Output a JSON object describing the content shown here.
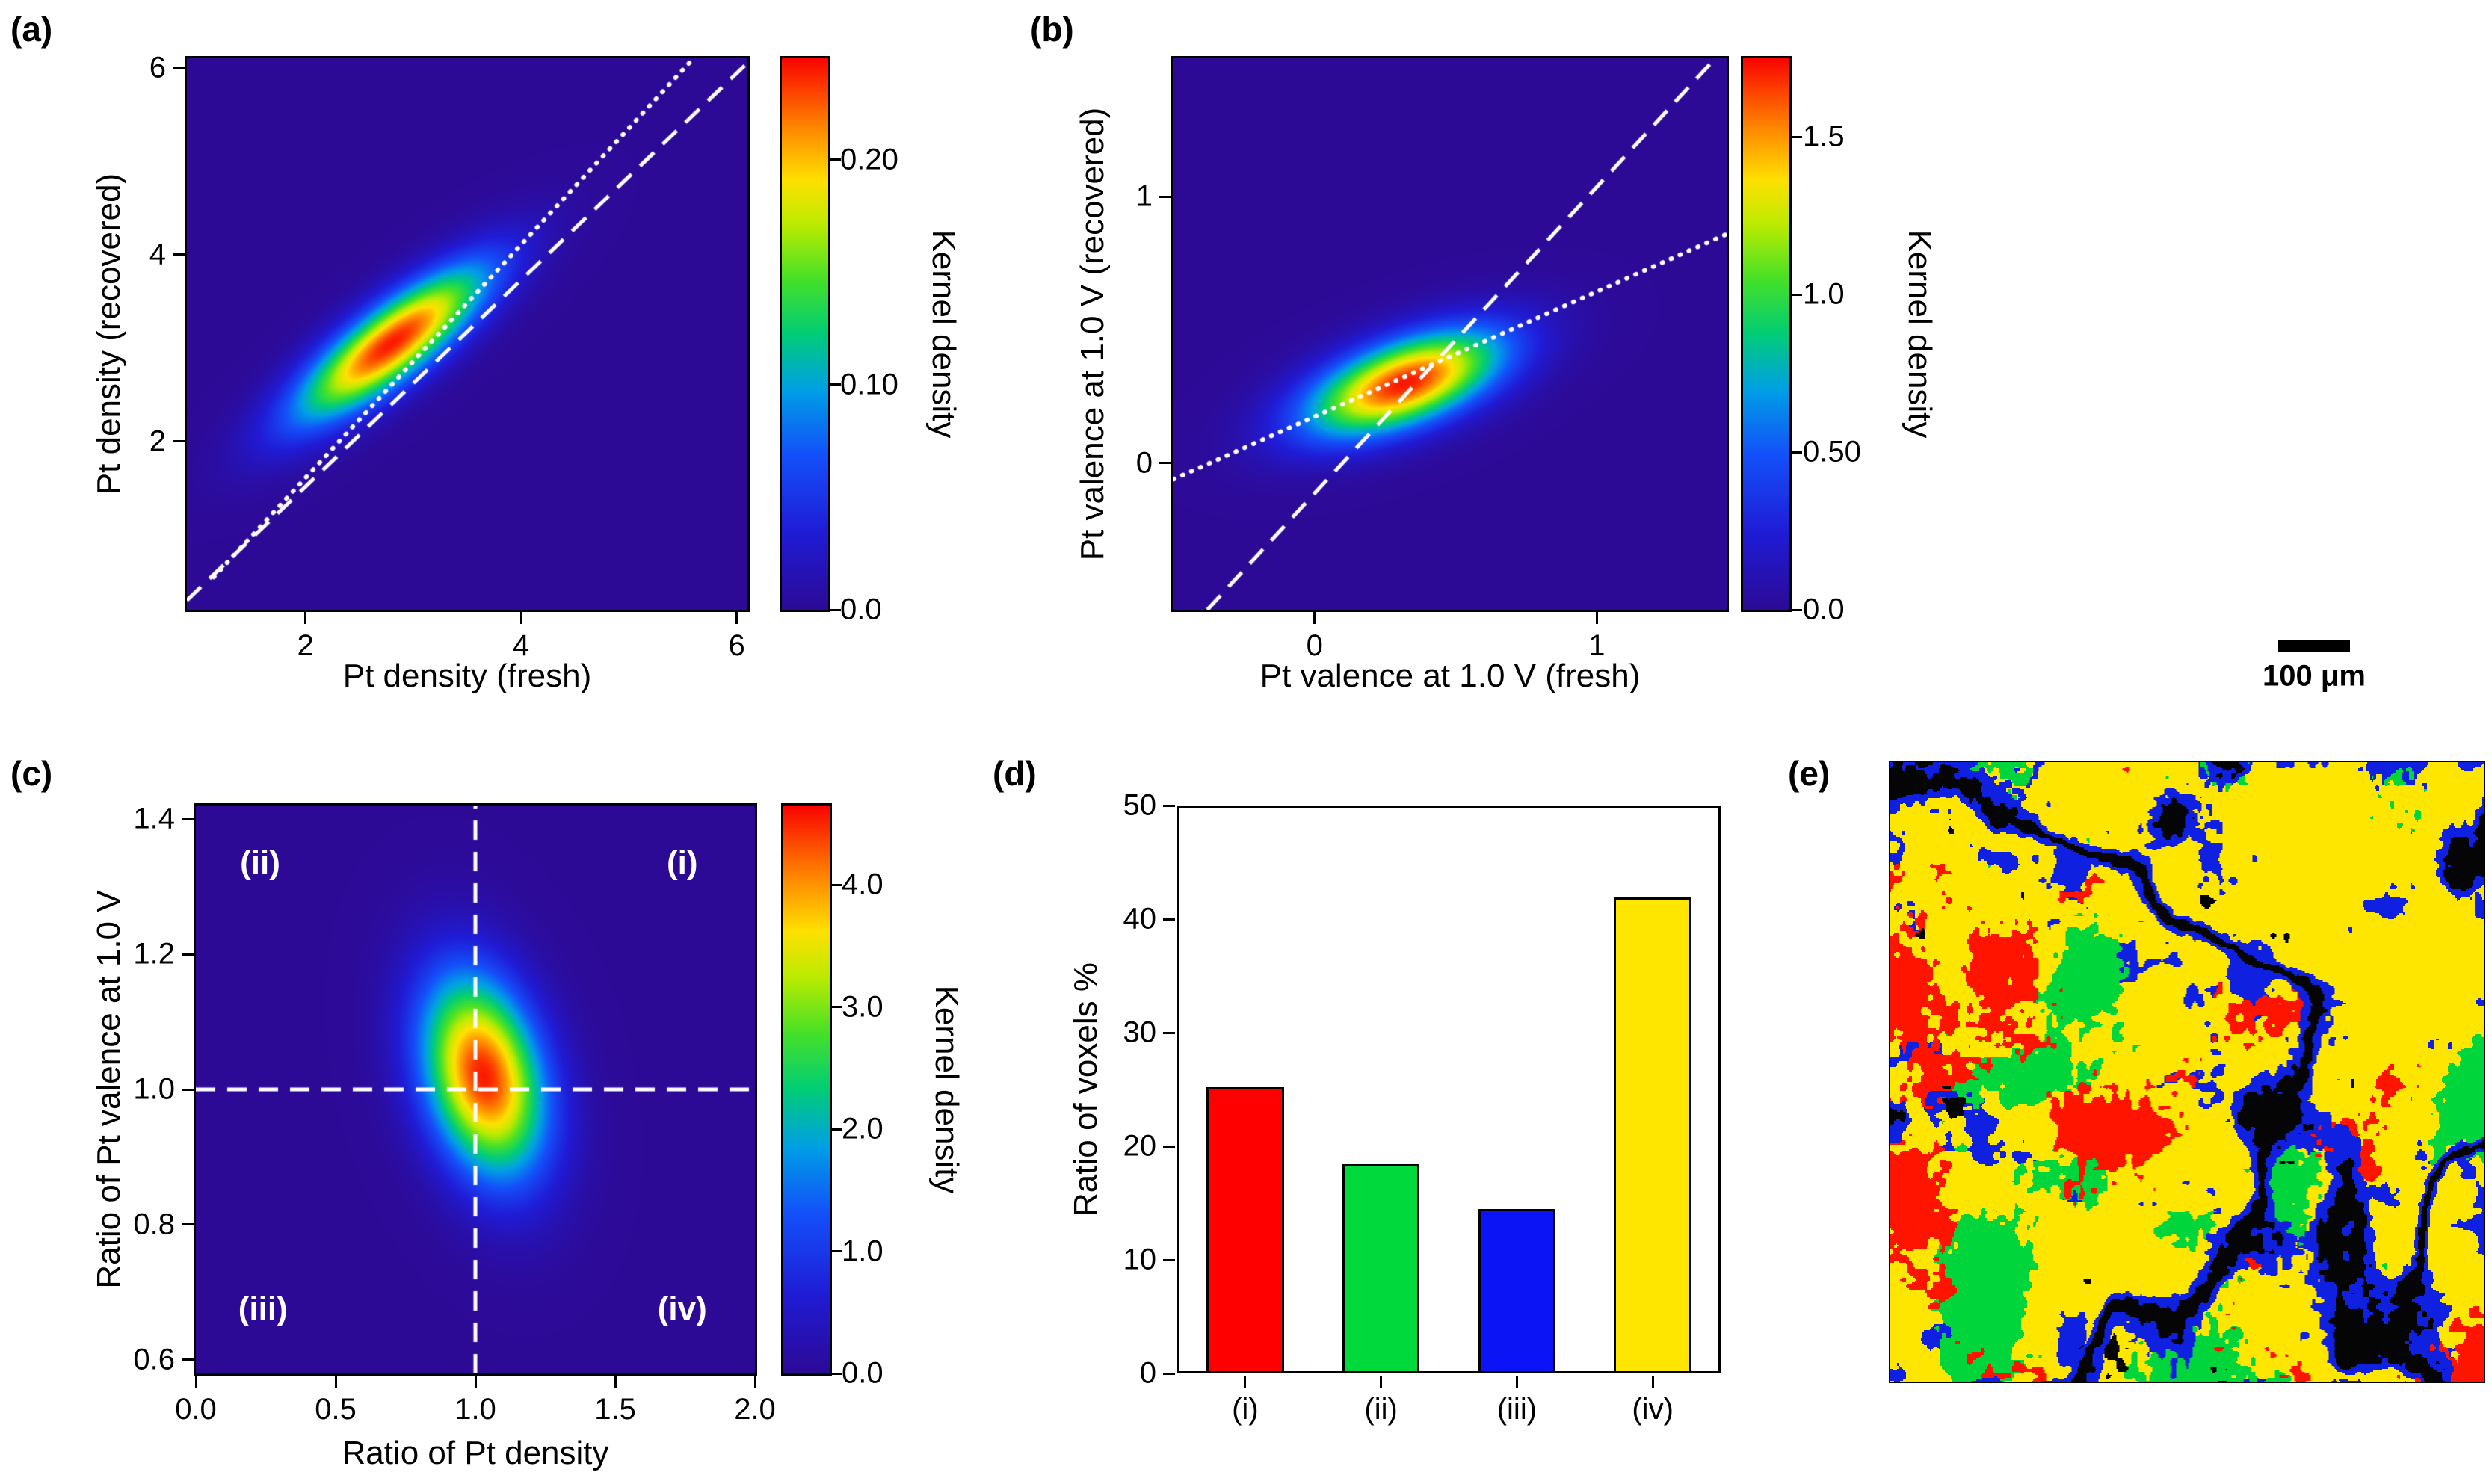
{
  "scale_bar": {
    "label": "100 μm"
  },
  "chart_data": [
    {
      "type": "heatmap",
      "panel_label": "(a)",
      "xlabel": "Pt density (fresh)",
      "ylabel": "Pt density (recovered)",
      "xlim": [
        0.9,
        6.1
      ],
      "ylim": [
        0.2,
        6.1
      ],
      "xticks": [
        2,
        4,
        6
      ],
      "xtick_labels": [
        "2",
        "4",
        "6"
      ],
      "yticks": [
        2,
        4,
        6
      ],
      "ytick_labels": [
        "2",
        "4",
        "6"
      ],
      "colorbar": {
        "label": "Kernel density",
        "max": 0.245,
        "ticks": [
          0,
          0.1,
          0.2
        ],
        "tick_labels": [
          "0.0",
          "0.10",
          "0.20"
        ]
      },
      "density": {
        "center": [
          2.8,
          3.05
        ],
        "sigma_x": 0.62,
        "sigma_y": 0.58,
        "rho": 0.82,
        "peak": 0.24
      },
      "lines": [
        {
          "style": "dashed",
          "x": [
            0.9,
            6.1
          ],
          "y": [
            0.3,
            6.05
          ]
        },
        {
          "style": "dotted",
          "x": [
            1.15,
            5.6
          ],
          "y": [
            0.55,
            6.1
          ]
        }
      ]
    },
    {
      "type": "heatmap",
      "panel_label": "(b)",
      "xlabel": "Pt valence at 1.0 V (fresh)",
      "ylabel": "Pt valence at 1.0 V (recovered)",
      "xlim": [
        -0.5,
        1.46
      ],
      "ylim": [
        -0.55,
        1.52
      ],
      "xticks": [
        0,
        1
      ],
      "xtick_labels": [
        "0",
        "1"
      ],
      "yticks": [
        0,
        1
      ],
      "ytick_labels": [
        "0",
        "1"
      ],
      "colorbar": {
        "label": "Kernel density",
        "max": 1.75,
        "ticks": [
          0,
          0.5,
          1.0,
          1.5
        ],
        "tick_labels": [
          "0.0",
          "0.50",
          "1.0",
          "1.5"
        ]
      },
      "density": {
        "center": [
          0.32,
          0.3
        ],
        "sigma_x": 0.245,
        "sigma_y": 0.14,
        "rho": 0.56,
        "peak": 1.72
      },
      "lines": [
        {
          "style": "dashed",
          "x": [
            -0.38,
            1.42
          ],
          "y": [
            -0.55,
            1.52
          ]
        },
        {
          "style": "dotted",
          "x": [
            -0.5,
            1.46
          ],
          "y": [
            -0.06,
            0.86
          ]
        }
      ]
    },
    {
      "type": "heatmap",
      "panel_label": "(c)",
      "xlabel": "Ratio of Pt density",
      "ylabel": "Ratio of Pt valence at 1.0 V",
      "xlim": [
        0,
        2
      ],
      "ylim": [
        0.58,
        1.42
      ],
      "xticks": [
        0,
        0.5,
        1.0,
        1.5,
        2.0
      ],
      "xtick_labels": [
        "0.0",
        "0.5",
        "1.0",
        "1.5",
        "2.0"
      ],
      "yticks": [
        0.6,
        0.8,
        1.0,
        1.2,
        1.4
      ],
      "ytick_labels": [
        "0.6",
        "0.8",
        "1.0",
        "1.2",
        "1.4"
      ],
      "colorbar": {
        "label": "Kernel density",
        "max": 4.65,
        "ticks": [
          0,
          1,
          2,
          3,
          4
        ],
        "tick_labels": [
          "0.0",
          "1.0",
          "2.0",
          "3.0",
          "4.0"
        ]
      },
      "density": {
        "center": [
          1.03,
          1.02
        ],
        "sigma_x": 0.155,
        "sigma_y": 0.105,
        "rho": -0.28,
        "peak": 4.55
      },
      "lines": [
        {
          "style": "dashed",
          "x": [
            1.0,
            1.0
          ],
          "y": [
            0.58,
            1.42
          ]
        },
        {
          "style": "dashed",
          "x": [
            0,
            2
          ],
          "y": [
            1.0,
            1.0
          ]
        }
      ],
      "quadrant_labels": [
        {
          "text": "(ii)",
          "x": 0.23,
          "y": 1.335
        },
        {
          "text": "(i)",
          "x": 1.74,
          "y": 1.335
        },
        {
          "text": "(iii)",
          "x": 0.24,
          "y": 0.675
        },
        {
          "text": "(iv)",
          "x": 1.74,
          "y": 0.675
        }
      ]
    },
    {
      "type": "bar",
      "panel_label": "(d)",
      "xlabel": "",
      "ylabel": "Ratio of voxels %",
      "categories": [
        "(i)",
        "(ii)",
        "(iii)",
        "(iv)"
      ],
      "values": [
        25.2,
        18.4,
        14.5,
        41.9
      ],
      "colors": [
        "#ff0000",
        "#00d93c",
        "#0a14f5",
        "#ffe600"
      ],
      "ylim": [
        0,
        50
      ],
      "yticks": [
        0,
        10,
        20,
        30,
        40,
        50
      ],
      "ytick_labels": [
        "0",
        "10",
        "20",
        "30",
        "40",
        "50"
      ],
      "legend": "none",
      "grid": "off"
    },
    {
      "type": "map",
      "panel_label": "(e)",
      "description": "Segmented voxel classification map: yellow/red/green/blue classes with black crack network",
      "palette": {
        "yellow": "#ffe600",
        "red": "#ff1400",
        "green": "#00d63c",
        "blue": "#1020e0",
        "black": "#050505"
      }
    }
  ]
}
